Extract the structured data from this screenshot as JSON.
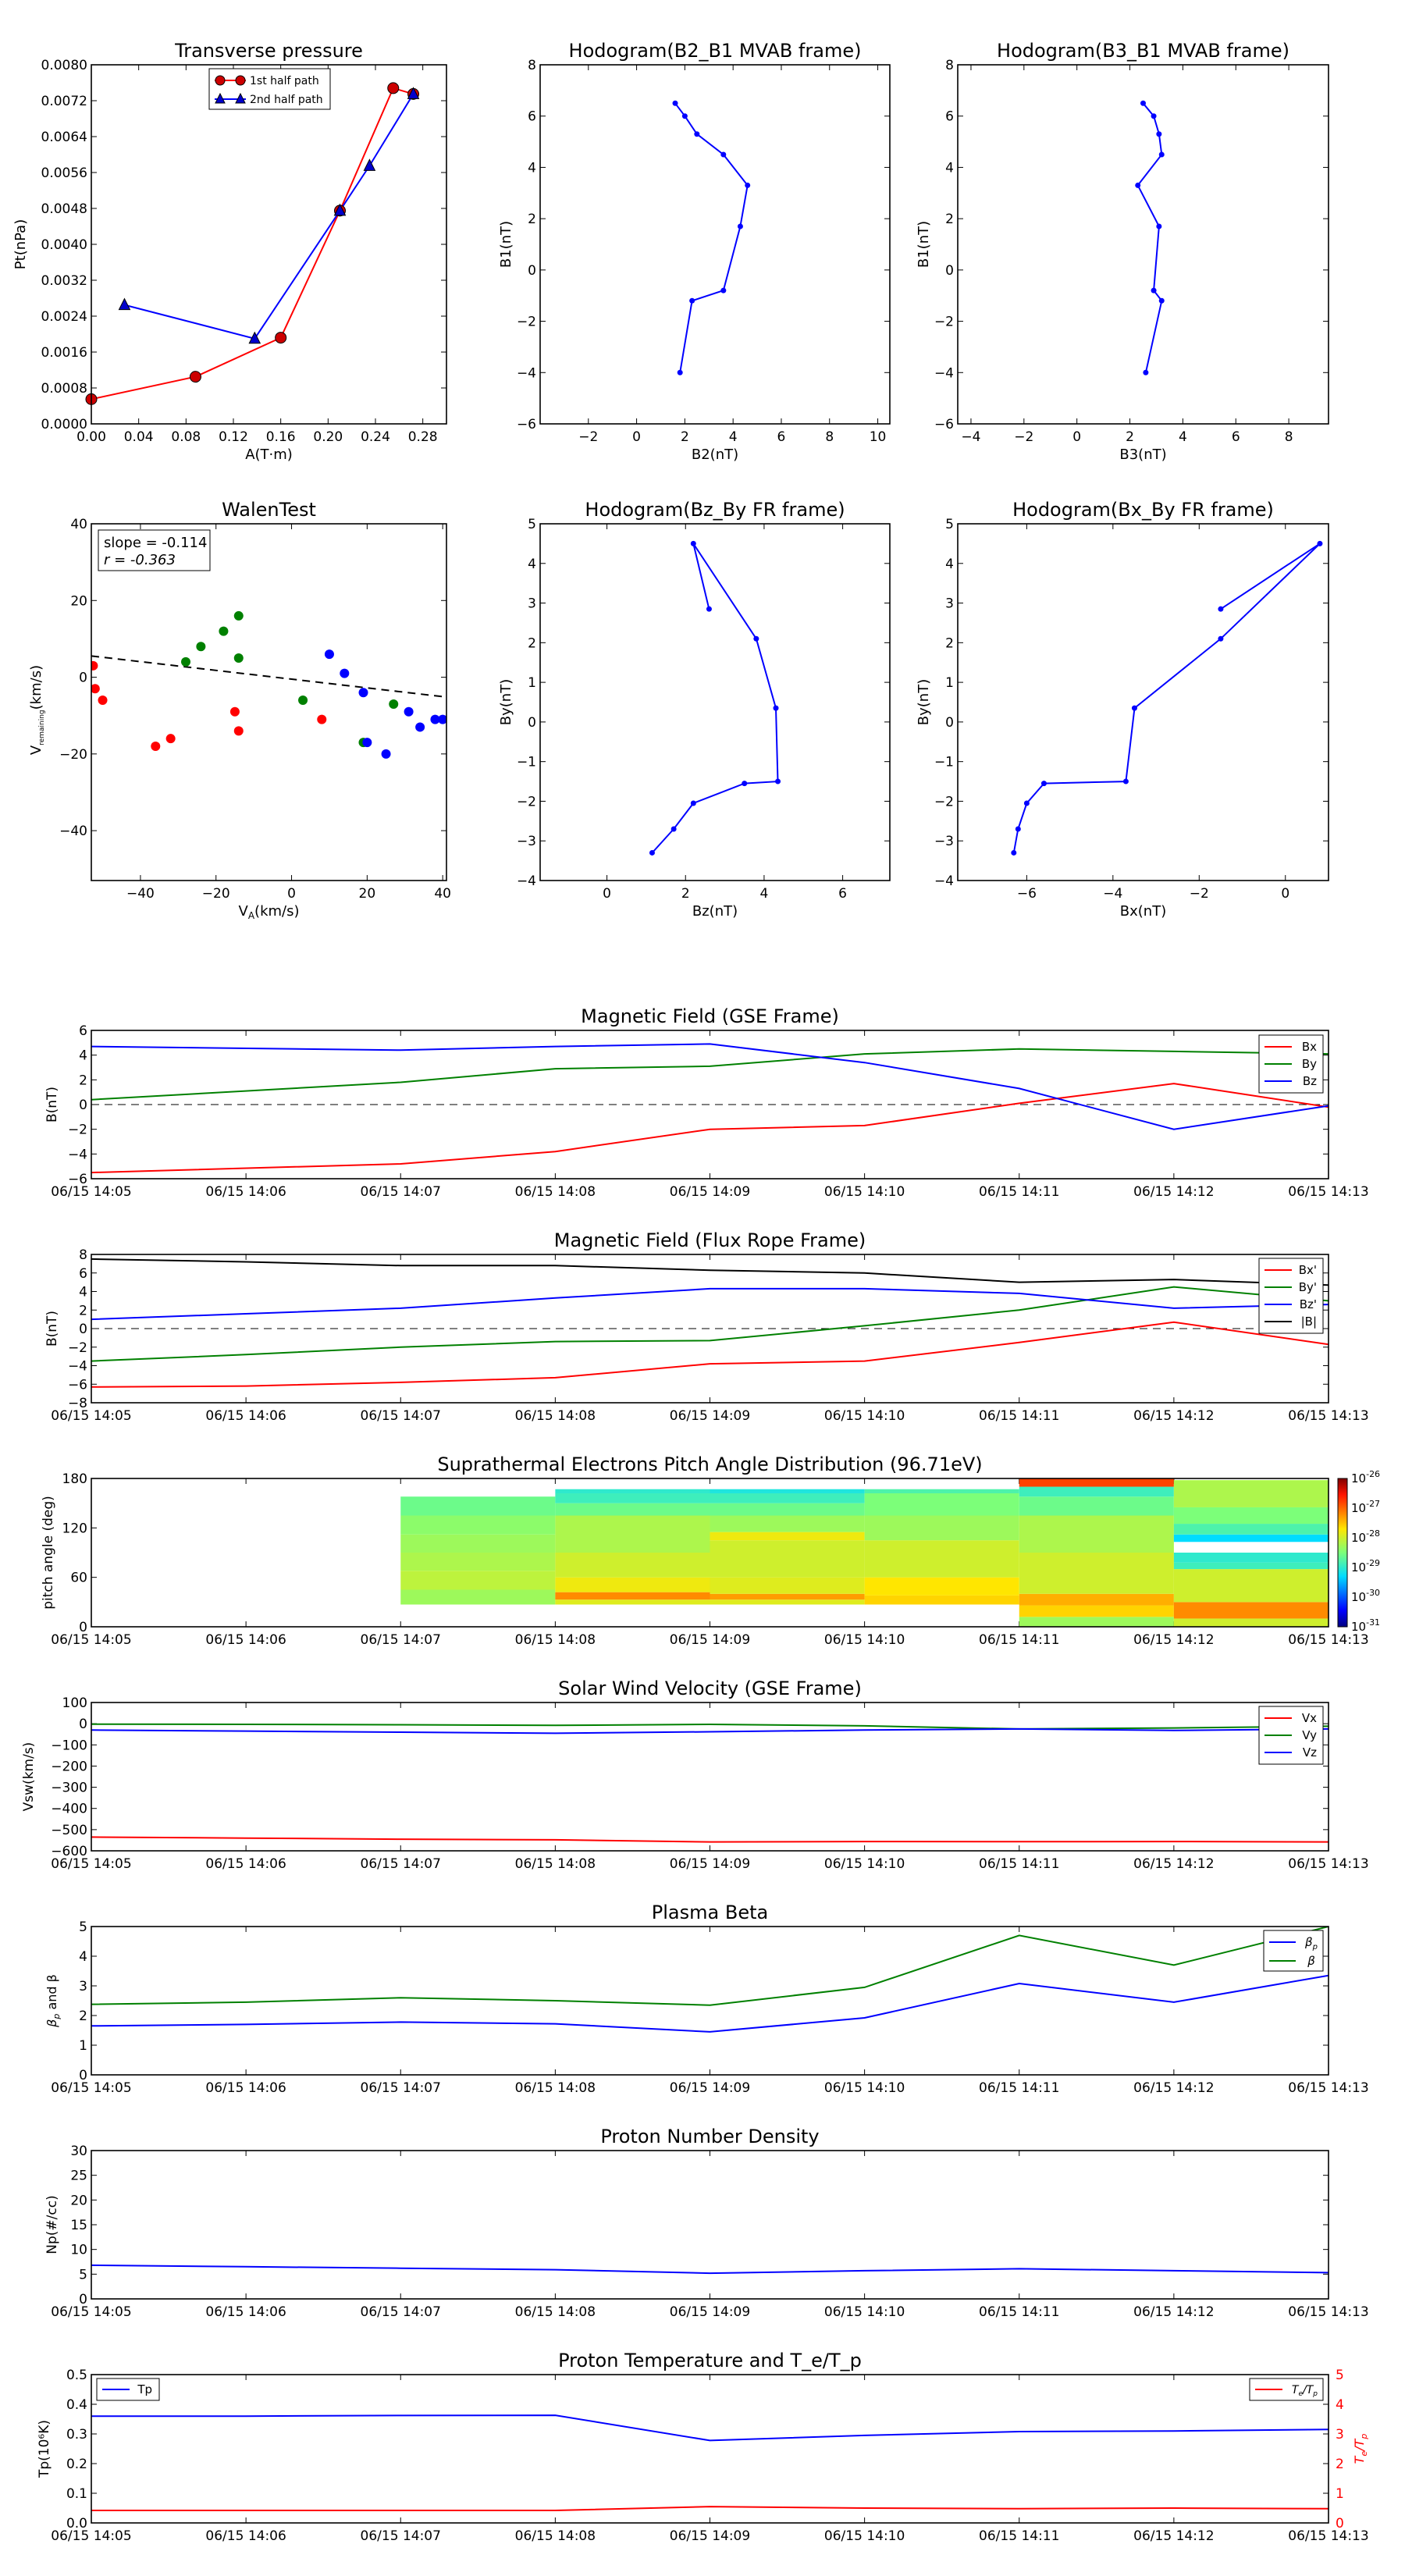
{
  "time_ticks": [
    "06/15 14:05",
    "06/15 14:06",
    "06/15 14:07",
    "06/15 14:08",
    "06/15 14:09",
    "06/15 14:10",
    "06/15 14:11",
    "06/15 14:12",
    "06/15 14:13"
  ],
  "colors": {
    "red": "#ff0000",
    "green": "#008000",
    "blue": "#0000ff",
    "black": "#000000"
  },
  "chart_data": [
    {
      "id": "transverse-pressure",
      "type": "line",
      "title": "Transverse pressure",
      "xlabel": "A(T·m)",
      "ylabel": "Pt(nPa)",
      "xlim": [
        0,
        0.3
      ],
      "ylim": [
        0,
        0.008
      ],
      "xticks": [
        "0.00",
        "0.04",
        "0.08",
        "0.12",
        "0.16",
        "0.20",
        "0.24",
        "0.28"
      ],
      "yticks": [
        "0.0000",
        "0.0008",
        "0.0016",
        "0.0024",
        "0.0032",
        "0.0040",
        "0.0048",
        "0.0056",
        "0.0064",
        "0.0072",
        "0.0080"
      ],
      "legend": "top-center",
      "series": [
        {
          "name": "1st half path",
          "color": "#ff0000",
          "marker": "circle",
          "x": [
            0.0,
            0.088,
            0.16,
            0.21,
            0.255,
            0.272
          ],
          "y": [
            0.00055,
            0.00105,
            0.00192,
            0.00475,
            0.00748,
            0.00735
          ]
        },
        {
          "name": "2nd half path",
          "color": "#0000ff",
          "marker": "triangle",
          "x": [
            0.272,
            0.235,
            0.21,
            0.138,
            0.028
          ],
          "y": [
            0.00735,
            0.00575,
            0.00475,
            0.0019,
            0.00265
          ]
        }
      ]
    },
    {
      "id": "hodogram-b2-b1",
      "type": "line",
      "title": "Hodogram(B2_B1 MVAB frame)",
      "xlabel": "B2(nT)",
      "ylabel": "B1(nT)",
      "xlim": [
        -4,
        10.5
      ],
      "ylim": [
        -6,
        8
      ],
      "xticks": [
        "−2",
        "0",
        "2",
        "4",
        "6",
        "8",
        "10"
      ],
      "yticks": [
        "−6",
        "−4",
        "−2",
        "0",
        "2",
        "4",
        "6",
        "8"
      ],
      "series": [
        {
          "color": "#0000ff",
          "x": [
            1.6,
            2.0,
            2.5,
            3.6,
            4.6,
            4.3,
            3.6,
            2.3,
            1.8
          ],
          "y": [
            6.5,
            6.0,
            5.3,
            4.5,
            3.3,
            1.7,
            -0.8,
            -1.2,
            -4.0
          ]
        }
      ]
    },
    {
      "id": "hodogram-b3-b1",
      "type": "line",
      "title": "Hodogram(B3_B1 MVAB frame)",
      "xlabel": "B3(nT)",
      "ylabel": "B1(nT)",
      "xlim": [
        -4.5,
        9.5
      ],
      "ylim": [
        -6,
        8
      ],
      "xticks": [
        "−4",
        "−2",
        "0",
        "2",
        "4",
        "6",
        "8"
      ],
      "yticks": [
        "−6",
        "−4",
        "−2",
        "0",
        "2",
        "4",
        "6",
        "8"
      ],
      "series": [
        {
          "color": "#0000ff",
          "x": [
            2.5,
            2.9,
            3.1,
            3.2,
            2.3,
            3.1,
            2.9,
            3.2,
            2.6
          ],
          "y": [
            6.5,
            6.0,
            5.3,
            4.5,
            3.3,
            1.7,
            -0.8,
            -1.2,
            -4.0
          ]
        }
      ]
    },
    {
      "id": "walen-test",
      "type": "scatter",
      "title": "WalenTest",
      "xlabel": "V_A(km/s)",
      "ylabel": "V_remaining(km/s)",
      "xlim": [
        -53,
        41
      ],
      "ylim": [
        -53,
        40
      ],
      "xticks": [
        "−40",
        "−20",
        "0",
        "20",
        "40"
      ],
      "yticks": [
        "−40",
        "−20",
        "0",
        "20",
        "40"
      ],
      "annotation": [
        "slope = -0.114",
        "r = -0.363"
      ],
      "fit": {
        "slope": -0.114,
        "intercept": -0.5
      },
      "series": [
        {
          "color": "#ff0000",
          "x": [
            -52.5,
            -52,
            -50,
            -36,
            -32,
            -15,
            -14,
            8
          ],
          "y": [
            3,
            -3,
            -6,
            -18,
            -16,
            -9,
            -14,
            -11
          ]
        },
        {
          "color": "#008000",
          "x": [
            -28,
            -24,
            -18,
            -14,
            -14,
            3,
            19,
            27
          ],
          "y": [
            4,
            8,
            12,
            16,
            5,
            -6,
            -17,
            -7
          ]
        },
        {
          "color": "#0000ff",
          "x": [
            10,
            14,
            19,
            20,
            25,
            31,
            34,
            38,
            40
          ],
          "y": [
            6,
            1,
            -4,
            -17,
            -20,
            -9,
            -13,
            -11,
            -11
          ]
        }
      ]
    },
    {
      "id": "hodogram-bz-by",
      "type": "line",
      "title": "Hodogram(Bz_By FR frame)",
      "xlabel": "Bz(nT)",
      "ylabel": "By(nT)",
      "xlim": [
        -1.7,
        7.2
      ],
      "ylim": [
        -4,
        5
      ],
      "xticks": [
        "0",
        "2",
        "4",
        "6"
      ],
      "yticks": [
        "−4",
        "−3",
        "−2",
        "−1",
        "0",
        "1",
        "2",
        "3",
        "4",
        "5"
      ],
      "series": [
        {
          "color": "#0000ff",
          "x": [
            2.6,
            2.2,
            3.8,
            4.3,
            4.35,
            3.5,
            2.2,
            1.7,
            1.15
          ],
          "y": [
            2.85,
            4.5,
            2.1,
            0.35,
            -1.5,
            -1.55,
            -2.05,
            -2.7,
            -3.3
          ]
        }
      ]
    },
    {
      "id": "hodogram-bx-by",
      "type": "line",
      "title": "Hodogram(Bx_By FR frame)",
      "xlabel": "Bx(nT)",
      "ylabel": "By(nT)",
      "xlim": [
        -7.6,
        1.0
      ],
      "ylim": [
        -4,
        5
      ],
      "xticks": [
        "−6",
        "−4",
        "−2",
        "0"
      ],
      "yticks": [
        "−4",
        "−3",
        "−2",
        "−1",
        "0",
        "1",
        "2",
        "3",
        "4",
        "5"
      ],
      "series": [
        {
          "color": "#0000ff",
          "x": [
            -1.5,
            0.8,
            -1.5,
            -3.5,
            -3.7,
            -5.6,
            -6.0,
            -6.2,
            -6.3
          ],
          "y": [
            2.85,
            4.5,
            2.1,
            0.35,
            -1.5,
            -1.55,
            -2.05,
            -2.7,
            -3.3
          ]
        }
      ]
    },
    {
      "id": "mag-gse",
      "type": "line",
      "title": "Magnetic Field (GSE Frame)",
      "ylabel": "B(nT)",
      "xlim": [
        0,
        8
      ],
      "ylim": [
        -6,
        6
      ],
      "yticks": [
        "−6",
        "−4",
        "−2",
        "0",
        "2",
        "4",
        "6"
      ],
      "legend": "top-right",
      "zero_line": true,
      "x": [
        0,
        2,
        3,
        4,
        5,
        6,
        7,
        8
      ],
      "series": [
        {
          "name": "Bx",
          "color": "#ff0000",
          "values": [
            -5.5,
            -4.8,
            -3.8,
            -2.0,
            -1.7,
            0.1,
            1.7,
            -0.2
          ]
        },
        {
          "name": "By",
          "color": "#008000",
          "values": [
            0.4,
            1.8,
            2.9,
            3.1,
            4.1,
            4.5,
            4.3,
            4.1
          ]
        },
        {
          "name": "Bz",
          "color": "#0000ff",
          "values": [
            4.7,
            4.4,
            4.7,
            4.9,
            3.4,
            1.3,
            -2.0,
            -0.1
          ]
        }
      ]
    },
    {
      "id": "mag-fr",
      "type": "line",
      "title": "Magnetic Field (Flux Rope Frame)",
      "ylabel": "B(nT)",
      "xlim": [
        0,
        8
      ],
      "ylim": [
        -8,
        8
      ],
      "yticks": [
        "−8",
        "−6",
        "−4",
        "−2",
        "0",
        "2",
        "4",
        "6",
        "8"
      ],
      "legend": "top-right",
      "zero_line": true,
      "x": [
        0,
        1,
        2,
        3,
        4,
        5,
        6,
        7,
        8
      ],
      "series": [
        {
          "name": "Bx'",
          "color": "#ff0000",
          "values": [
            -6.3,
            -6.2,
            -5.8,
            -5.3,
            -3.8,
            -3.5,
            -1.5,
            0.7,
            -1.7
          ]
        },
        {
          "name": "By'",
          "color": "#008000",
          "values": [
            -3.5,
            -2.8,
            -2.0,
            -1.4,
            -1.3,
            0.3,
            2.0,
            4.5,
            3.0
          ]
        },
        {
          "name": "Bz'",
          "color": "#0000ff",
          "values": [
            1.0,
            1.6,
            2.2,
            3.3,
            4.3,
            4.3,
            3.8,
            2.2,
            2.6
          ]
        },
        {
          "name": "|B|",
          "color": "#000000",
          "values": [
            7.5,
            7.2,
            6.8,
            6.8,
            6.3,
            6.0,
            5.0,
            5.3,
            4.7
          ]
        }
      ]
    },
    {
      "id": "pad",
      "type": "heatmap",
      "title": "Suprathermal Electrons Pitch Angle Distribution (96.71eV)",
      "ylabel": "pitch angle (deg)",
      "xlim": [
        0,
        8
      ],
      "ylim": [
        0,
        180
      ],
      "yticks": [
        "0",
        "60",
        "120",
        "180"
      ],
      "colorbar_ticks": [
        "-26",
        "-27",
        "-28",
        "-29",
        "-30",
        "-31"
      ],
      "colorbar_range": [
        -31,
        -26
      ],
      "columns": [
        {
          "x0": 2,
          "x1": 3,
          "bins": [
            [
              27,
              45,
              -28.3
            ],
            [
              45,
              68,
              -28.1
            ],
            [
              68,
              90,
              -28.2
            ],
            [
              90,
              112,
              -28.3
            ],
            [
              112,
              135,
              -28.4
            ],
            [
              135,
              158,
              -28.6
            ]
          ]
        },
        {
          "x0": 3,
          "x1": 4,
          "bins": [
            [
              0,
              27,
              null
            ],
            [
              27,
              33,
              -27.9
            ],
            [
              33,
              42,
              -27.2
            ],
            [
              42,
              60,
              -27.8
            ],
            [
              60,
              90,
              -28.0
            ],
            [
              90,
              135,
              -28.2
            ],
            [
              135,
              150,
              -28.6
            ],
            [
              150,
              162,
              -28.9
            ],
            [
              162,
              167,
              -29.0
            ]
          ]
        },
        {
          "x0": 4,
          "x1": 5,
          "bins": [
            [
              27,
              33,
              -27.9
            ],
            [
              33,
              40,
              -27.3
            ],
            [
              40,
              60,
              -27.9
            ],
            [
              60,
              105,
              -28.0
            ],
            [
              105,
              115,
              -27.8
            ],
            [
              115,
              135,
              -28.3
            ],
            [
              135,
              150,
              -28.6
            ],
            [
              150,
              162,
              -28.9
            ],
            [
              162,
              167,
              -29.1
            ]
          ]
        },
        {
          "x0": 5,
          "x1": 6,
          "bins": [
            [
              27,
              38,
              -27.6
            ],
            [
              38,
              60,
              -27.7
            ],
            [
              60,
              105,
              -28.0
            ],
            [
              105,
              135,
              -28.3
            ],
            [
              135,
              162,
              -28.5
            ],
            [
              162,
              167,
              -28.8
            ]
          ]
        },
        {
          "x0": 6,
          "x1": 7,
          "bins": [
            [
              0,
              12,
              -28.3
            ],
            [
              12,
              26,
              -27.6
            ],
            [
              26,
              40,
              -27.4
            ],
            [
              40,
              90,
              -28.0
            ],
            [
              90,
              135,
              -28.2
            ],
            [
              135,
              158,
              -28.6
            ],
            [
              158,
              170,
              -28.9
            ],
            [
              170,
              180,
              -26.8
            ]
          ]
        },
        {
          "x0": 7,
          "x1": 8,
          "bins": [
            [
              0,
              10,
              -28.0
            ],
            [
              10,
              30,
              -27.2
            ],
            [
              30,
              70,
              -28.0
            ],
            [
              70,
              78,
              -28.9
            ],
            [
              78,
              90,
              -29.0
            ],
            [
              90,
              103,
              null
            ],
            [
              103,
              112,
              -29.3
            ],
            [
              112,
              125,
              -28.8
            ],
            [
              125,
              145,
              -28.5
            ],
            [
              145,
              178,
              -28.2
            ]
          ]
        }
      ]
    },
    {
      "id": "velocity",
      "type": "line",
      "title": "Solar Wind Velocity (GSE Frame)",
      "ylabel": "Vsw(km/s)",
      "xlim": [
        0,
        8
      ],
      "ylim": [
        -600,
        100
      ],
      "yticks": [
        "−600",
        "−500",
        "−400",
        "−300",
        "−200",
        "−100",
        "0",
        "100"
      ],
      "legend": "top-right",
      "x": [
        0,
        1,
        2,
        3,
        4,
        5,
        6,
        7,
        8
      ],
      "series": [
        {
          "name": "Vx",
          "color": "#ff0000",
          "values": [
            -535,
            -540,
            -545,
            -548,
            -558,
            -556,
            -557,
            -556,
            -558
          ]
        },
        {
          "name": "Vy",
          "color": "#008000",
          "values": [
            -2,
            -3,
            -5,
            -8,
            -3,
            -10,
            -25,
            -20,
            -12
          ]
        },
        {
          "name": "Vz",
          "color": "#0000ff",
          "values": [
            -30,
            -35,
            -40,
            -45,
            -38,
            -30,
            -25,
            -32,
            -25
          ]
        }
      ]
    },
    {
      "id": "beta",
      "type": "line",
      "title": "Plasma Beta",
      "ylabel": "β_p and β",
      "xlim": [
        0,
        8
      ],
      "ylim": [
        0,
        5
      ],
      "yticks": [
        "0",
        "1",
        "2",
        "3",
        "4",
        "5"
      ],
      "legend": "top-right",
      "x": [
        0,
        1,
        2,
        3,
        4,
        5,
        6,
        7,
        8
      ],
      "series": [
        {
          "name": "β_p",
          "color": "#0000ff",
          "values": [
            1.65,
            1.7,
            1.78,
            1.72,
            1.45,
            1.92,
            3.08,
            2.45,
            3.35
          ]
        },
        {
          "name": "β",
          "color": "#008000",
          "values": [
            2.38,
            2.45,
            2.6,
            2.5,
            2.35,
            2.95,
            4.7,
            3.7,
            5.0
          ]
        }
      ]
    },
    {
      "id": "density",
      "type": "line",
      "title": "Proton Number Density",
      "ylabel": "Np(#/cc)",
      "xlim": [
        0,
        8
      ],
      "ylim": [
        0,
        30
      ],
      "yticks": [
        "0",
        "5",
        "10",
        "15",
        "20",
        "25",
        "30"
      ],
      "x": [
        0,
        1,
        2,
        3,
        4,
        5,
        6,
        7,
        8
      ],
      "series": [
        {
          "color": "#0000ff",
          "values": [
            6.8,
            6.5,
            6.2,
            5.9,
            5.2,
            5.7,
            6.1,
            5.7,
            5.3
          ]
        }
      ]
    },
    {
      "id": "temperature",
      "type": "line",
      "title": "Proton Temperature and T_e/T_p",
      "ylabel": "Tp(10⁶K)",
      "y2label": "T_e/T_p",
      "xlim": [
        0,
        8
      ],
      "ylim": [
        0,
        0.5
      ],
      "y2lim": [
        0,
        5
      ],
      "yticks": [
        "0.0",
        "0.1",
        "0.2",
        "0.3",
        "0.4",
        "0.5"
      ],
      "y2ticks": [
        "0",
        "1",
        "2",
        "3",
        "4",
        "5"
      ],
      "x": [
        0,
        1,
        2,
        3,
        4,
        5,
        6,
        7,
        8
      ],
      "series": [
        {
          "name": "Tp",
          "color": "#0000ff",
          "axis": "left",
          "values": [
            0.36,
            0.36,
            0.362,
            0.363,
            0.278,
            0.295,
            0.308,
            0.31,
            0.315
          ]
        },
        {
          "name": "T_e/T_p",
          "color": "#ff0000",
          "axis": "right",
          "values": [
            0.42,
            0.42,
            0.42,
            0.42,
            0.55,
            0.5,
            0.48,
            0.5,
            0.48
          ]
        }
      ]
    }
  ]
}
